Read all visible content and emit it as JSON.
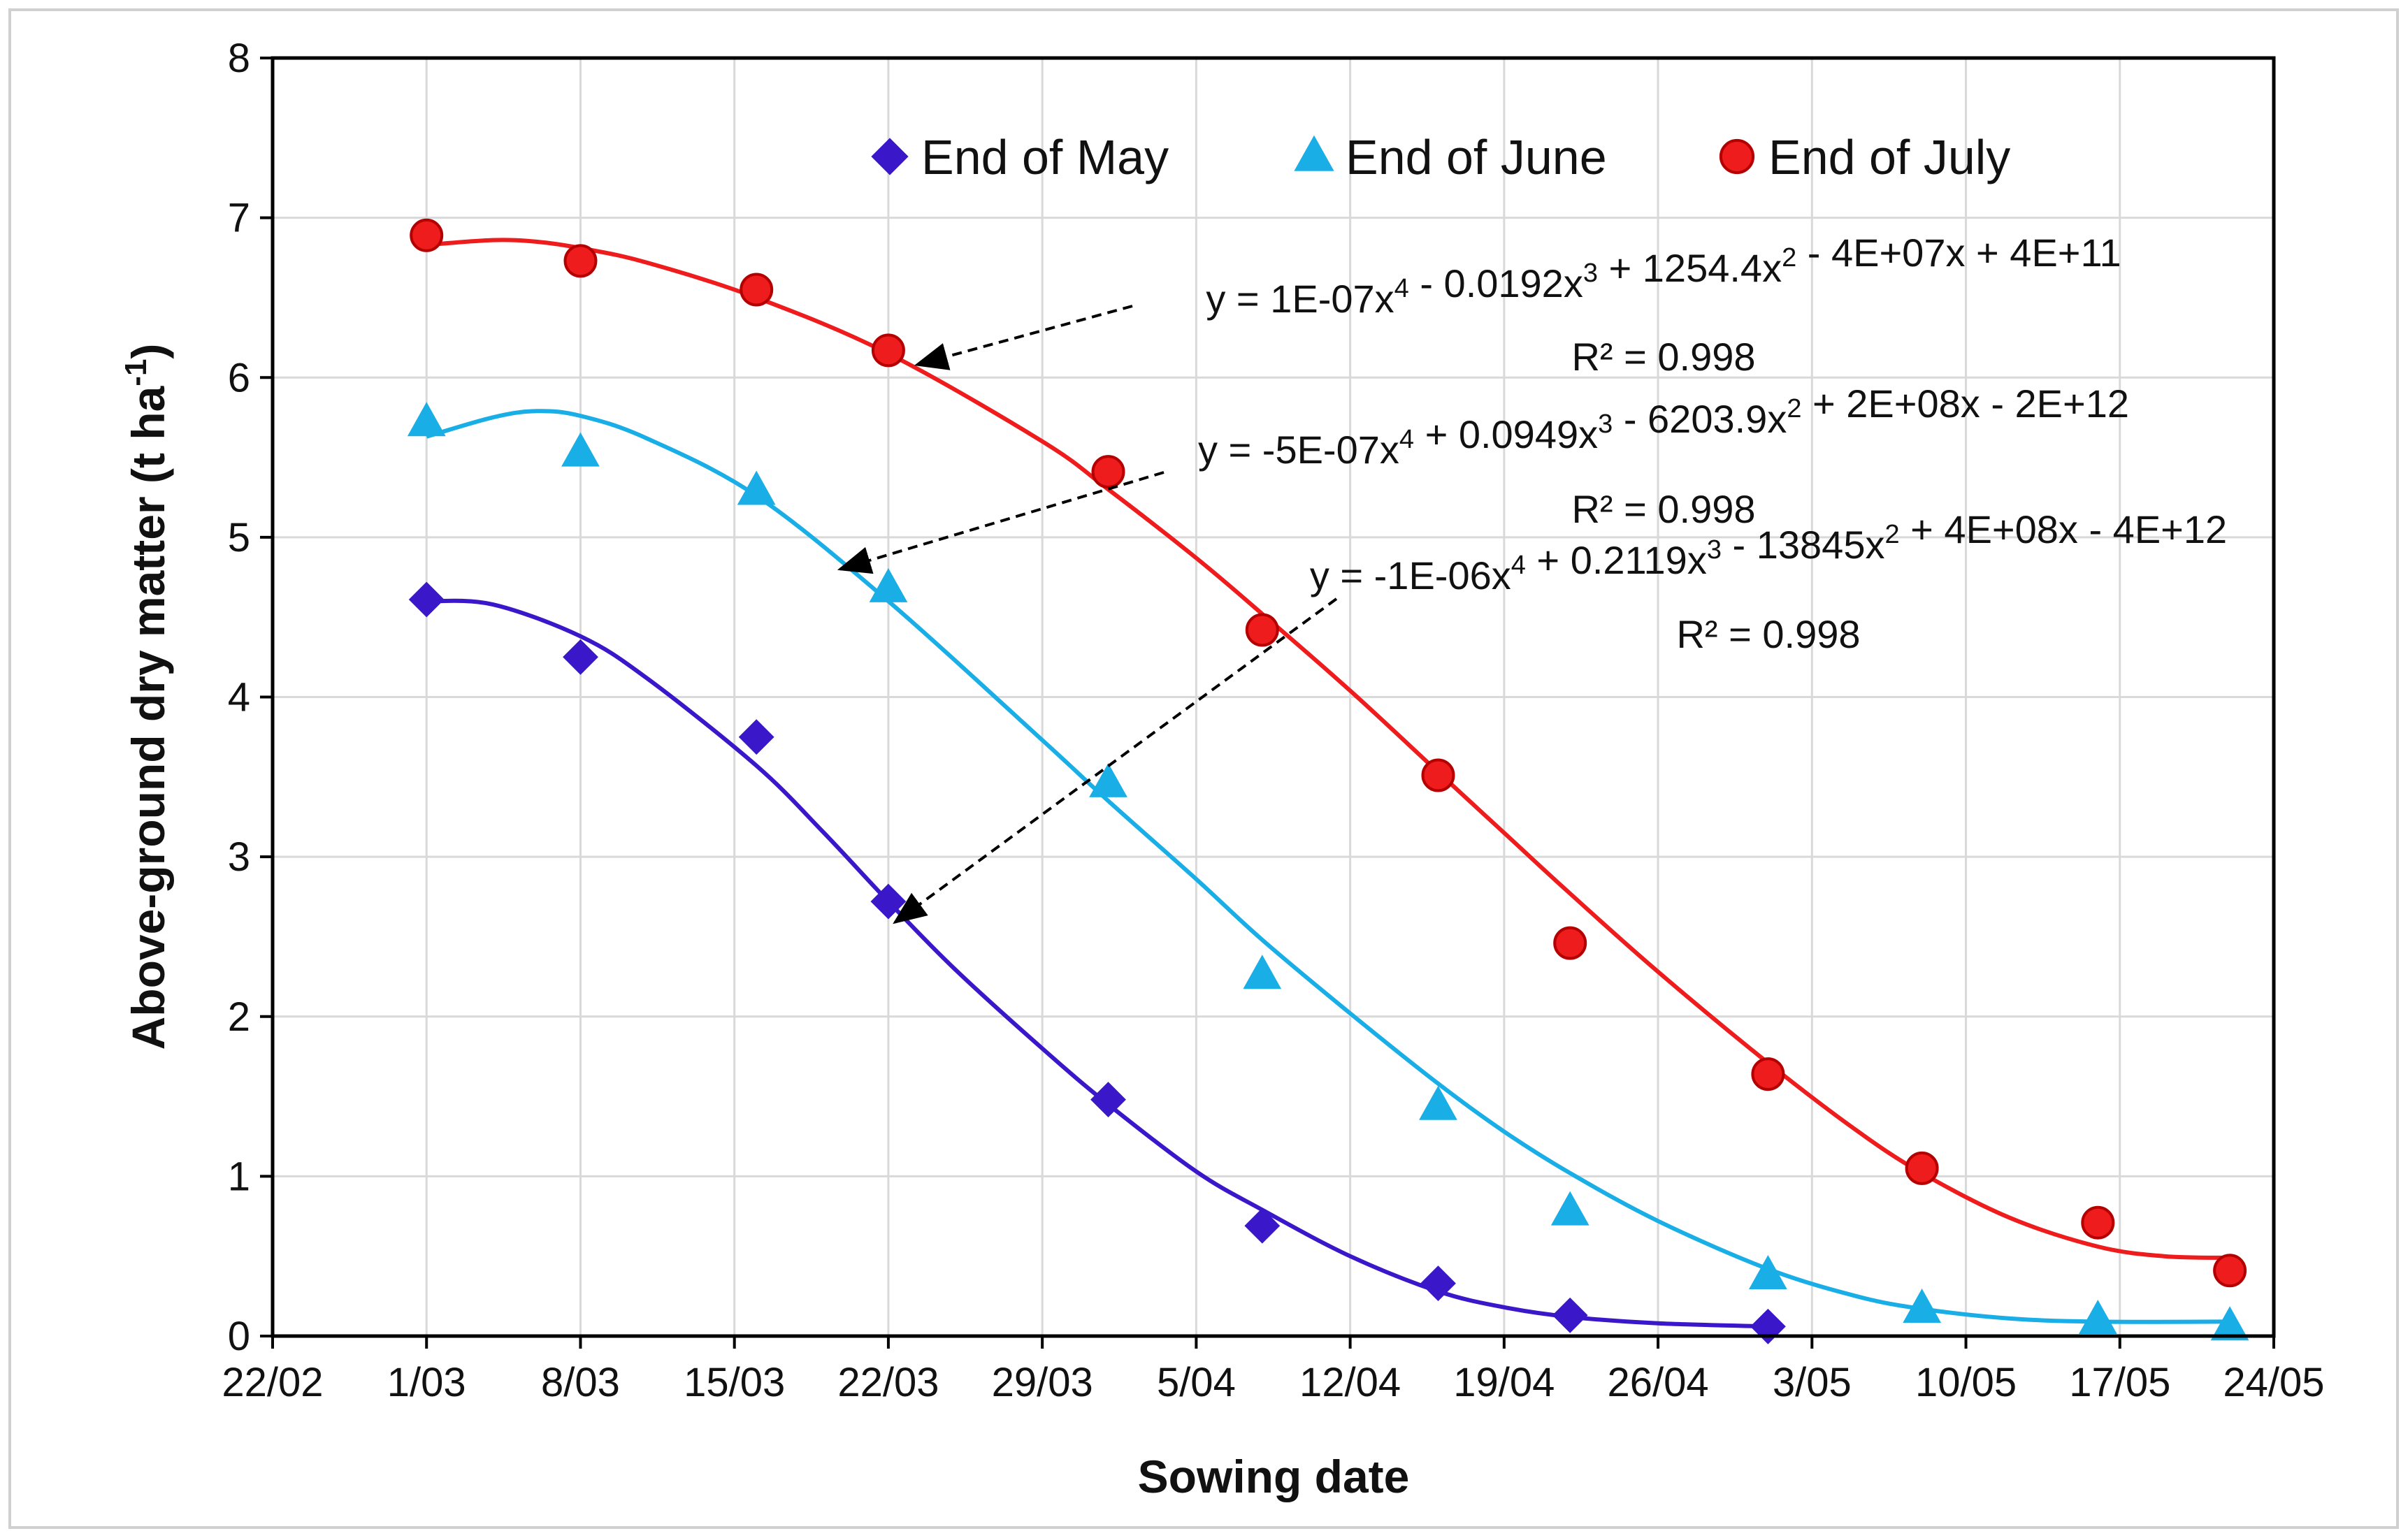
{
  "chart_data": {
    "type": "scatter",
    "title": "",
    "xlabel": "Sowing date",
    "ylabel": "Above-ground dry matter (t ha-1)",
    "ylabel_parts": {
      "main": "Above-ground dry matter (t ha",
      "sup": "-1",
      "close": ")"
    },
    "xlim": [
      -7,
      84
    ],
    "ylim": [
      0,
      8
    ],
    "x_day_offset_from": "1/03",
    "x_ticks": [
      {
        "label": "22/02",
        "day": -7
      },
      {
        "label": "1/03",
        "day": 0
      },
      {
        "label": "8/03",
        "day": 7
      },
      {
        "label": "15/03",
        "day": 14
      },
      {
        "label": "22/03",
        "day": 21
      },
      {
        "label": "29/03",
        "day": 28
      },
      {
        "label": "5/04",
        "day": 35
      },
      {
        "label": "12/04",
        "day": 42
      },
      {
        "label": "19/04",
        "day": 49
      },
      {
        "label": "26/04",
        "day": 56
      },
      {
        "label": "3/05",
        "day": 63
      },
      {
        "label": "10/05",
        "day": 70
      },
      {
        "label": "17/05",
        "day": 77
      },
      {
        "label": "24/05",
        "day": 84
      }
    ],
    "y_ticks": [
      "0",
      "1",
      "2",
      "3",
      "4",
      "5",
      "6",
      "7",
      "8"
    ],
    "grid": true,
    "legend_position": "top-center",
    "series": [
      {
        "name": "End of May",
        "marker": "diamond",
        "color": "#3a17c9",
        "x": [
          0,
          7,
          15,
          21,
          31,
          38,
          46,
          52,
          61
        ],
        "y": [
          4.61,
          4.25,
          3.75,
          2.72,
          1.48,
          0.69,
          0.33,
          0.13,
          0.06
        ],
        "trend_x": [
          0,
          3,
          7,
          10,
          15,
          18,
          21,
          24,
          28,
          31,
          35,
          38,
          42,
          46,
          49,
          52,
          56,
          61
        ],
        "trend_y": [
          4.6,
          4.58,
          4.38,
          4.12,
          3.57,
          3.16,
          2.72,
          2.3,
          1.8,
          1.45,
          1.03,
          0.79,
          0.5,
          0.28,
          0.18,
          0.12,
          0.08,
          0.06
        ]
      },
      {
        "name": "End of June",
        "marker": "triangle",
        "color": "#1aaee6",
        "x": [
          0,
          7,
          15,
          21,
          31,
          38,
          46,
          52,
          61,
          68,
          76,
          82
        ],
        "y": [
          5.72,
          5.53,
          5.29,
          4.68,
          3.46,
          2.26,
          1.44,
          0.78,
          0.38,
          0.17,
          0.1,
          0.06
        ],
        "trend_x": [
          0,
          3,
          5,
          7,
          10,
          15,
          21,
          28,
          31,
          35,
          38,
          42,
          46,
          49,
          52,
          56,
          61,
          65,
          68,
          72,
          76,
          82
        ],
        "trend_y": [
          5.63,
          5.75,
          5.79,
          5.76,
          5.62,
          5.26,
          4.6,
          3.73,
          3.35,
          2.86,
          2.48,
          2.02,
          1.58,
          1.28,
          1.02,
          0.72,
          0.42,
          0.25,
          0.17,
          0.11,
          0.09,
          0.09
        ]
      },
      {
        "name": "End of July",
        "marker": "circle",
        "color": "#ee1c1c",
        "x": [
          0,
          7,
          15,
          21,
          31,
          38,
          46,
          52,
          61,
          68,
          76,
          82
        ],
        "y": [
          6.89,
          6.73,
          6.55,
          6.17,
          5.41,
          4.42,
          3.51,
          2.46,
          1.64,
          1.05,
          0.71,
          0.41
        ],
        "trend_x": [
          0,
          3,
          5,
          7,
          10,
          15,
          21,
          28,
          31,
          35,
          38,
          42,
          46,
          49,
          52,
          56,
          61,
          65,
          68,
          72,
          76,
          79,
          82
        ],
        "trend_y": [
          6.83,
          6.86,
          6.85,
          6.81,
          6.72,
          6.5,
          6.15,
          5.6,
          5.3,
          4.87,
          4.52,
          4.04,
          3.53,
          3.15,
          2.77,
          2.28,
          1.71,
          1.29,
          1.02,
          0.74,
          0.56,
          0.5,
          0.49
        ]
      }
    ],
    "annotations": [
      {
        "series": "End of July",
        "equation": "y = 1E-07x4 - 0.0192x3 + 1254.4x2 - 4E+07x + 4E+11",
        "r2": "R² = 0.998",
        "target_day": 22.3,
        "target_y": 6.08
      },
      {
        "series": "End of June",
        "equation": "y = -5E-07x4 + 0.0949x3 - 6203.9x2 + 2E+08x - 2E+12",
        "r2": "R² = 0.998",
        "target_day": 18.8,
        "target_y": 4.8
      },
      {
        "series": "End of May",
        "equation": "y = -1E-06x4 + 0.2119x3 - 13845x2 + 4E+08x - 4E+12",
        "r2": "R² = 0.998",
        "target_day": 21.3,
        "target_y": 2.59
      }
    ]
  }
}
